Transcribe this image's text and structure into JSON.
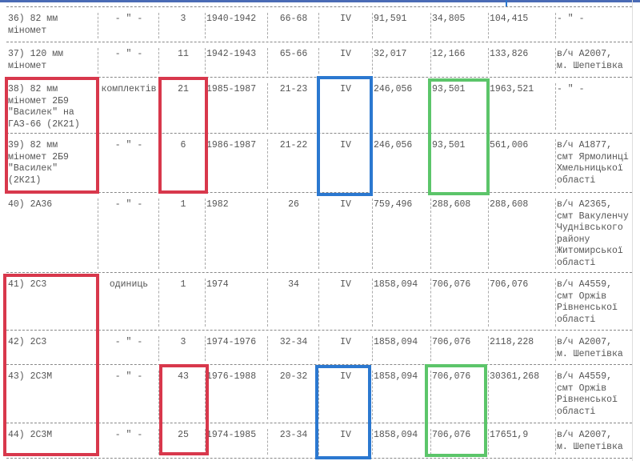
{
  "rows": [
    {
      "name": "36) 82 мм\nміномет",
      "unit": "- \" -",
      "qty": "3",
      "years": "1940-1942",
      "age": "66-68",
      "cat": "IV",
      "c1": "91,591",
      "c2": "34,805",
      "c3": "104,415",
      "loc": "- \" -"
    },
    {
      "name": "37) 120 мм\nміномет",
      "unit": "- \" -",
      "qty": "11",
      "years": "1942-1943",
      "age": "65-66",
      "cat": "IV",
      "c1": "32,017",
      "c2": "12,166",
      "c3": "133,826",
      "loc": "в/ч А2007,\nм. Шепетівка"
    },
    {
      "name": "38) 82 мм\nміномет 2Б9\n\"Василек\" на\nГАЗ-66 (2К21)",
      "unit": "комплектів",
      "qty": "21",
      "years": "1985-1987",
      "age": "21-23",
      "cat": "IV",
      "c1": "246,056",
      "c2": "93,501",
      "c3": "1963,521",
      "loc": "- \" -"
    },
    {
      "name": "39) 82 мм\nміномет 2Б9\n\"Василек\"\n(2К21)",
      "unit": "- \" -",
      "qty": "6",
      "years": "1986-1987",
      "age": "21-22",
      "cat": "IV",
      "c1": "246,056",
      "c2": "93,501",
      "c3": "561,006",
      "loc": "в/ч А1877,\nсмт Ярмолинці\nХмельницької\nобласті"
    },
    {
      "name": "40) 2А36",
      "unit": "- \" -",
      "qty": "1",
      "years": "1982",
      "age": "26",
      "cat": "IV",
      "c1": "759,496",
      "c2": "288,608",
      "c3": "288,608",
      "loc": "в/ч А2365,\nсмт Вакуленчу\nЧуднівського\nрайону\nЖитомирської\nобласті"
    },
    {
      "name": "41) 2С3",
      "unit": "одиниць",
      "qty": "1",
      "years": "1974",
      "age": "34",
      "cat": "IV",
      "c1": "1858,094",
      "c2": "706,076",
      "c3": "706,076",
      "loc": "в/ч А4559,\nсмт Оржів\nРівненської\nобласті"
    },
    {
      "name": "42) 2С3",
      "unit": "- \" -",
      "qty": "3",
      "years": "1974-1976",
      "age": "32-34",
      "cat": "IV",
      "c1": "1858,094",
      "c2": "706,076",
      "c3": "2118,228",
      "loc": "в/ч А2007,\nм. Шепетівка"
    },
    {
      "name": "43) 2С3М",
      "unit": "- \" -",
      "qty": "43",
      "years": "1976-1988",
      "age": "20-32",
      "cat": "IV",
      "c1": "1858,094",
      "c2": "706,076",
      "c3": "30361,268",
      "loc": "в/ч А4559,\nсмт Оржів\nРівненської\nобласті"
    },
    {
      "name": "44) 2С3М",
      "unit": "- \" -",
      "qty": "25",
      "years": "1974-1985",
      "age": "23-34",
      "cat": "IV",
      "c1": "1858,094",
      "c2": "706,076",
      "c3": "17651,9",
      "loc": "в/ч А2007,\nм. Шепетівка"
    }
  ],
  "colors": {
    "red": "#d8384c",
    "blue": "#2b78d0",
    "green": "#5cc56a"
  }
}
